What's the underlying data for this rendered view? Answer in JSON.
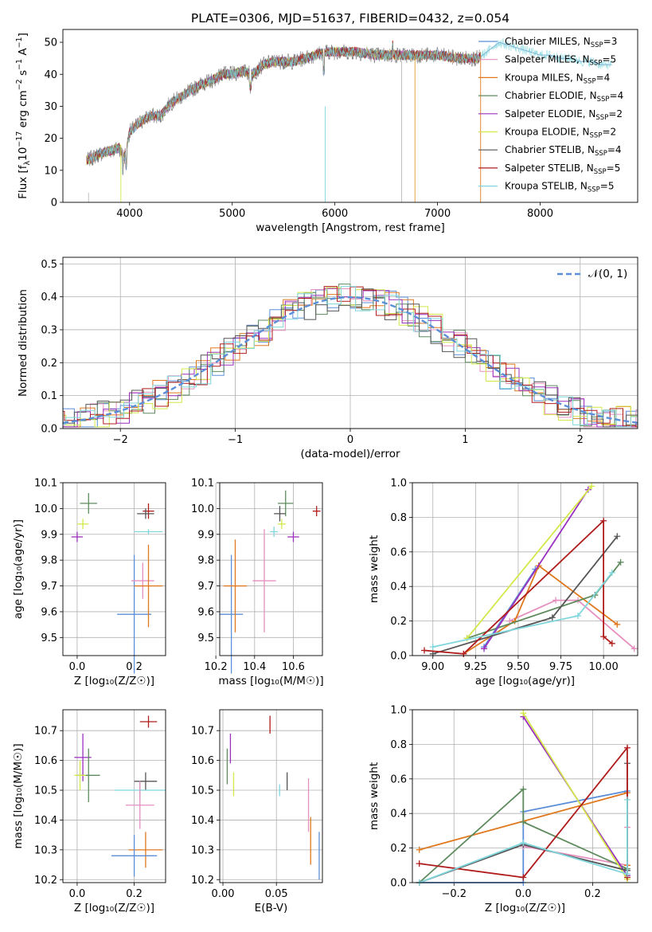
{
  "figure": {
    "title": "PLATE=0306, MJD=51637, FIBERID=0432, z=0.054"
  },
  "chart_data": [
    {
      "id": "spectrum",
      "type": "line",
      "xlabel": "wavelength [Angstrom, rest frame]",
      "ylabel": "Flux [f$_\\lambda$10$^{-17}$ erg cm$^{-2}$ s$^{-1}$ A$^{-1}$]",
      "ylabel_parts": {
        "main": "Flux [f",
        "lambda": "λ",
        "ten": "10",
        "exp1": "−17",
        "erg": " erg cm",
        "exp2": "−2",
        "s": " s",
        "exp3": "−1",
        "A": " A",
        "exp4": "−1",
        "close": "]"
      },
      "xlim": [
        3350,
        8950
      ],
      "ylim": [
        0,
        54
      ],
      "xticks": [
        4000,
        5000,
        6000,
        7000,
        8000
      ],
      "yticks": [
        0,
        10,
        20,
        30,
        40,
        50
      ],
      "grid": false,
      "legend_placement": "right",
      "series": [
        {
          "name": "Chabrier MILES",
          "nssp": "3",
          "color": "#5b8fd9"
        },
        {
          "name": "Salpeter MILES",
          "nssp": "5",
          "color": "#e58fbf"
        },
        {
          "name": "Kroupa MILES",
          "nssp": "4",
          "color": "#e0781e"
        },
        {
          "name": "Chabrier ELODIE",
          "nssp": "4",
          "color": "#5e8b5e"
        },
        {
          "name": "Salpeter ELODIE",
          "nssp": "2",
          "color": "#9b30bf"
        },
        {
          "name": "Kroupa ELODIE",
          "nssp": "2",
          "color": "#d4e84a"
        },
        {
          "name": "Chabrier STELIB",
          "nssp": "4",
          "color": "#555555"
        },
        {
          "name": "Salpeter STELIB",
          "nssp": "5",
          "color": "#b01c1c"
        },
        {
          "name": "Kroupa STELIB",
          "nssp": "5",
          "color": "#7fd6dc"
        }
      ],
      "nssp_label": "N",
      "nssp_sub": "SSP",
      "continuum": {
        "x": [
          3580,
          3700,
          3800,
          3900,
          3950,
          4000,
          4100,
          4200,
          4300,
          4400,
          4500,
          4600,
          4700,
          4800,
          4900,
          5000,
          5100,
          5200,
          5300,
          5400,
          5500,
          5600,
          5700,
          5800,
          5900,
          6000,
          6200,
          6400,
          6600,
          6800,
          7000,
          7200,
          7400,
          7600,
          7700,
          7800,
          7900,
          8000,
          8100,
          8200,
          8300,
          8400,
          8500,
          8600,
          8700
        ],
        "y": [
          13,
          15,
          16,
          17,
          14,
          22,
          25,
          27,
          27,
          31,
          33,
          35,
          37,
          38,
          40,
          40,
          41,
          40,
          43,
          44,
          44,
          44,
          45,
          46,
          47,
          47,
          47,
          46,
          46,
          46,
          46,
          45,
          45,
          50,
          49,
          48,
          47,
          46,
          46,
          45,
          45,
          44,
          44,
          43,
          43
        ]
      }
    },
    {
      "id": "residuals",
      "type": "line",
      "xlabel": "(data-model)/error",
      "ylabel": "Normed distribution",
      "xlim": [
        -2.5,
        2.5
      ],
      "ylim": [
        0,
        0.52
      ],
      "xticks": [
        -2,
        -1,
        0,
        1,
        2
      ],
      "yticks": [
        0.0,
        0.1,
        0.2,
        0.3,
        0.4,
        0.5
      ],
      "grid": true,
      "legend_placement": "top-right",
      "legend_label": "𝒩(0, 1)",
      "gaussian_color": "#5b8fd9"
    },
    {
      "id": "age-vs-Z",
      "type": "scatter",
      "xlabel": "Z [log₁₀(Z/Z☉)]",
      "ylabel": "age  [log₁₀(age/yr)]",
      "xlim": [
        -0.05,
        0.31
      ],
      "ylim": [
        9.43,
        10.1
      ],
      "xticks": [
        0.0,
        0.2
      ],
      "yticks": [
        9.5,
        9.6,
        9.7,
        9.8,
        9.9,
        10.0,
        10.1
      ],
      "grid": true,
      "points": [
        {
          "x": 0.04,
          "y": 10.02,
          "xerr": 0.03,
          "yerr": 0.04,
          "color": "#5e8b5e"
        },
        {
          "x": 0.02,
          "y": 9.94,
          "xerr": 0.02,
          "yerr": 0.02,
          "color": "#d4e84a"
        },
        {
          "x": 0.0,
          "y": 9.89,
          "xerr": 0.02,
          "yerr": 0.02,
          "color": "#9b30bf"
        },
        {
          "x": 0.25,
          "y": 9.99,
          "xerr": 0.02,
          "yerr": 0.03,
          "color": "#b01c1c"
        },
        {
          "x": 0.24,
          "y": 9.98,
          "xerr": 0.03,
          "yerr": 0.02,
          "color": "#555555"
        },
        {
          "x": 0.25,
          "y": 9.91,
          "xerr": 0.05,
          "yerr": 0.01,
          "color": "#7fd6dc"
        },
        {
          "x": 0.2,
          "y": 9.59,
          "xerr": 0.06,
          "yerr": 0.23,
          "color": "#5b8fd9"
        },
        {
          "x": 0.23,
          "y": 9.72,
          "xerr": 0.04,
          "yerr": 0.07,
          "color": "#e58fbf"
        },
        {
          "x": 0.25,
          "y": 9.7,
          "xerr": 0.05,
          "yerr": 0.16,
          "color": "#e0781e"
        }
      ]
    },
    {
      "id": "age-vs-mass",
      "type": "scatter",
      "xlabel": "mass [log₁₀(M/M☉)]",
      "xlim": [
        10.22,
        10.75
      ],
      "ylim": [
        9.43,
        10.1
      ],
      "xticks": [
        10.2,
        10.4,
        10.6
      ],
      "yticks": [
        9.5,
        9.6,
        9.7,
        9.8,
        9.9,
        10.0,
        10.1
      ],
      "grid": true,
      "points": [
        {
          "x": 10.56,
          "y": 10.02,
          "xerr": 0.04,
          "yerr": 0.05,
          "color": "#5e8b5e"
        },
        {
          "x": 10.53,
          "y": 9.98,
          "xerr": 0.03,
          "yerr": 0.03,
          "color": "#555555"
        },
        {
          "x": 10.72,
          "y": 9.99,
          "xerr": 0.02,
          "yerr": 0.02,
          "color": "#b01c1c"
        },
        {
          "x": 10.6,
          "y": 9.89,
          "xerr": 0.03,
          "yerr": 0.02,
          "color": "#9b30bf"
        },
        {
          "x": 10.5,
          "y": 9.91,
          "xerr": 0.02,
          "yerr": 0.02,
          "color": "#7fd6dc"
        },
        {
          "x": 10.54,
          "y": 9.94,
          "xerr": 0.02,
          "yerr": 0.02,
          "color": "#d4e84a"
        },
        {
          "x": 10.28,
          "y": 9.59,
          "xerr": 0.06,
          "yerr": 0.23,
          "color": "#5b8fd9"
        },
        {
          "x": 10.45,
          "y": 9.72,
          "xerr": 0.06,
          "yerr": 0.2,
          "color": "#e58fbf"
        },
        {
          "x": 10.3,
          "y": 9.7,
          "xerr": 0.06,
          "yerr": 0.18,
          "color": "#e0781e"
        }
      ]
    },
    {
      "id": "weight-vs-age",
      "type": "line",
      "xlabel": "age  [log₁₀(age/yr)]",
      "ylabel": "mass weight",
      "xlim": [
        8.88,
        10.2
      ],
      "ylim": [
        0.0,
        1.0
      ],
      "xticks": [
        9.0,
        9.25,
        9.5,
        9.75,
        10.0
      ],
      "yticks": [
        0.0,
        0.2,
        0.4,
        0.6,
        0.8,
        1.0
      ],
      "grid": true,
      "series": [
        {
          "color": "#5b8fd9",
          "x": [
            9.3,
            9.6
          ],
          "y": [
            0.05,
            0.5
          ]
        },
        {
          "color": "#e58fbf",
          "x": [
            9.45,
            9.72,
            9.85,
            10.18
          ],
          "y": [
            0.2,
            0.32,
            0.32,
            0.04
          ]
        },
        {
          "color": "#e0781e",
          "x": [
            9.18,
            9.48,
            9.62,
            10.08
          ],
          "y": [
            0.01,
            0.2,
            0.52,
            0.18
          ]
        },
        {
          "color": "#5e8b5e",
          "x": [
            9.2,
            9.95,
            10.1
          ],
          "y": [
            0.1,
            0.35,
            0.54
          ]
        },
        {
          "color": "#9b30bf",
          "x": [
            9.3,
            9.91
          ],
          "y": [
            0.04,
            0.96
          ]
        },
        {
          "color": "#d4e84a",
          "x": [
            9.2,
            9.93
          ],
          "y": [
            0.1,
            0.98
          ]
        },
        {
          "color": "#555555",
          "x": [
            9.0,
            9.7,
            10.08
          ],
          "y": [
            0.01,
            0.22,
            0.69
          ]
        },
        {
          "color": "#b01c1c",
          "x": [
            8.95,
            9.18,
            10.0,
            10.0,
            10.05
          ],
          "y": [
            0.03,
            0.01,
            0.78,
            0.11,
            0.07
          ]
        },
        {
          "color": "#7fd6dc",
          "x": [
            9.0,
            9.85,
            10.05
          ],
          "y": [
            0.05,
            0.23,
            0.48
          ]
        }
      ]
    },
    {
      "id": "mass-vs-Z",
      "type": "scatter",
      "xlabel": "Z [log₁₀(Z/Z☉)]",
      "ylabel": "mass [log₁₀(M/M☉)]",
      "xlim": [
        -0.05,
        0.31
      ],
      "ylim": [
        10.19,
        10.77
      ],
      "xticks": [
        0.0,
        0.2
      ],
      "yticks": [
        10.2,
        10.3,
        10.4,
        10.5,
        10.6,
        10.7
      ],
      "grid": true,
      "points": [
        {
          "x": 0.25,
          "y": 10.73,
          "xerr": 0.03,
          "yerr": 0.02,
          "color": "#b01c1c"
        },
        {
          "x": 0.02,
          "y": 10.61,
          "xerr": 0.03,
          "yerr": 0.08,
          "color": "#9b30bf"
        },
        {
          "x": 0.04,
          "y": 10.55,
          "xerr": 0.04,
          "yerr": 0.09,
          "color": "#5e8b5e"
        },
        {
          "x": 0.01,
          "y": 10.55,
          "xerr": 0.02,
          "yerr": 0.05,
          "color": "#d4e84a"
        },
        {
          "x": 0.24,
          "y": 10.53,
          "xerr": 0.04,
          "yerr": 0.03,
          "color": "#555555"
        },
        {
          "x": 0.22,
          "y": 10.5,
          "xerr": 0.09,
          "yerr": 0.03,
          "color": "#7fd6dc"
        },
        {
          "x": 0.22,
          "y": 10.45,
          "xerr": 0.05,
          "yerr": 0.08,
          "color": "#e58fbf"
        },
        {
          "x": 0.24,
          "y": 10.3,
          "xerr": 0.06,
          "yerr": 0.06,
          "color": "#e0781e"
        },
        {
          "x": 0.2,
          "y": 10.28,
          "xerr": 0.08,
          "yerr": 0.07,
          "color": "#5b8fd9"
        }
      ]
    },
    {
      "id": "mass-vs-ebv",
      "type": "scatter",
      "xlabel": "E(B-V)",
      "xlim": [
        -0.003,
        0.093
      ],
      "ylim": [
        10.19,
        10.77
      ],
      "xticks": [
        0.0,
        0.05
      ],
      "yticks": [
        10.2,
        10.3,
        10.4,
        10.5,
        10.6,
        10.7
      ],
      "grid": true,
      "points": [
        {
          "x": 0.044,
          "y": 10.72,
          "xerr": 0.0,
          "yerr": 0.03,
          "color": "#b01c1c"
        },
        {
          "x": 0.007,
          "y": 10.64,
          "xerr": 0.0,
          "yerr": 0.05,
          "color": "#9b30bf"
        },
        {
          "x": 0.004,
          "y": 10.58,
          "xerr": 0.0,
          "yerr": 0.06,
          "color": "#5e8b5e"
        },
        {
          "x": 0.01,
          "y": 10.52,
          "xerr": 0.0,
          "yerr": 0.04,
          "color": "#d4e84a"
        },
        {
          "x": 0.06,
          "y": 10.53,
          "xerr": 0.0,
          "yerr": 0.03,
          "color": "#555555"
        },
        {
          "x": 0.053,
          "y": 10.5,
          "xerr": 0.0,
          "yerr": 0.02,
          "color": "#7fd6dc"
        },
        {
          "x": 0.082,
          "y": 10.33,
          "xerr": 0.0,
          "yerr": 0.08,
          "color": "#e0781e"
        },
        {
          "x": 0.08,
          "y": 10.45,
          "xerr": 0.0,
          "yerr": 0.09,
          "color": "#e58fbf"
        },
        {
          "x": 0.09,
          "y": 10.28,
          "xerr": 0.0,
          "yerr": 0.08,
          "color": "#5b8fd9"
        }
      ]
    },
    {
      "id": "weight-vs-Z",
      "type": "line",
      "xlabel": "Z [log₁₀(Z/Z☉)]",
      "ylabel": "mass weight",
      "xlim": [
        -0.32,
        0.33
      ],
      "ylim": [
        0.0,
        1.0
      ],
      "xticks": [
        -0.2,
        0.0,
        0.2
      ],
      "yticks": [
        0.0,
        0.2,
        0.4,
        0.6,
        0.8,
        1.0
      ],
      "grid": true,
      "series": [
        {
          "color": "#5b8fd9",
          "x": [
            -0.3,
            0.0,
            0.0,
            0.3
          ],
          "y": [
            0.0,
            0.0,
            0.41,
            0.53
          ]
        },
        {
          "color": "#e58fbf",
          "x": [
            0.0,
            0.3,
            0.3
          ],
          "y": [
            0.21,
            0.1,
            0.32
          ]
        },
        {
          "color": "#e0781e",
          "x": [
            -0.3,
            0.3,
            0.3
          ],
          "y": [
            0.19,
            0.52,
            0.1
          ]
        },
        {
          "color": "#5e8b5e",
          "x": [
            -0.3,
            0.0,
            0.0,
            0.3
          ],
          "y": [
            0.0,
            0.54,
            0.35,
            0.08
          ]
        },
        {
          "color": "#9b30bf",
          "x": [
            0.0,
            0.3
          ],
          "y": [
            0.96,
            0.04
          ]
        },
        {
          "color": "#d4e84a",
          "x": [
            0.0,
            0.3
          ],
          "y": [
            0.98,
            0.02
          ]
        },
        {
          "color": "#555555",
          "x": [
            -0.3,
            0.0,
            0.3,
            0.3
          ],
          "y": [
            0.0,
            0.22,
            0.07,
            0.69
          ]
        },
        {
          "color": "#b01c1c",
          "x": [
            -0.3,
            0.0,
            0.3,
            0.3
          ],
          "y": [
            0.11,
            0.03,
            0.78,
            0.03
          ]
        },
        {
          "color": "#7fd6dc",
          "x": [
            -0.3,
            0.0,
            0.3,
            0.3
          ],
          "y": [
            0.0,
            0.23,
            0.05,
            0.48
          ]
        }
      ]
    }
  ]
}
